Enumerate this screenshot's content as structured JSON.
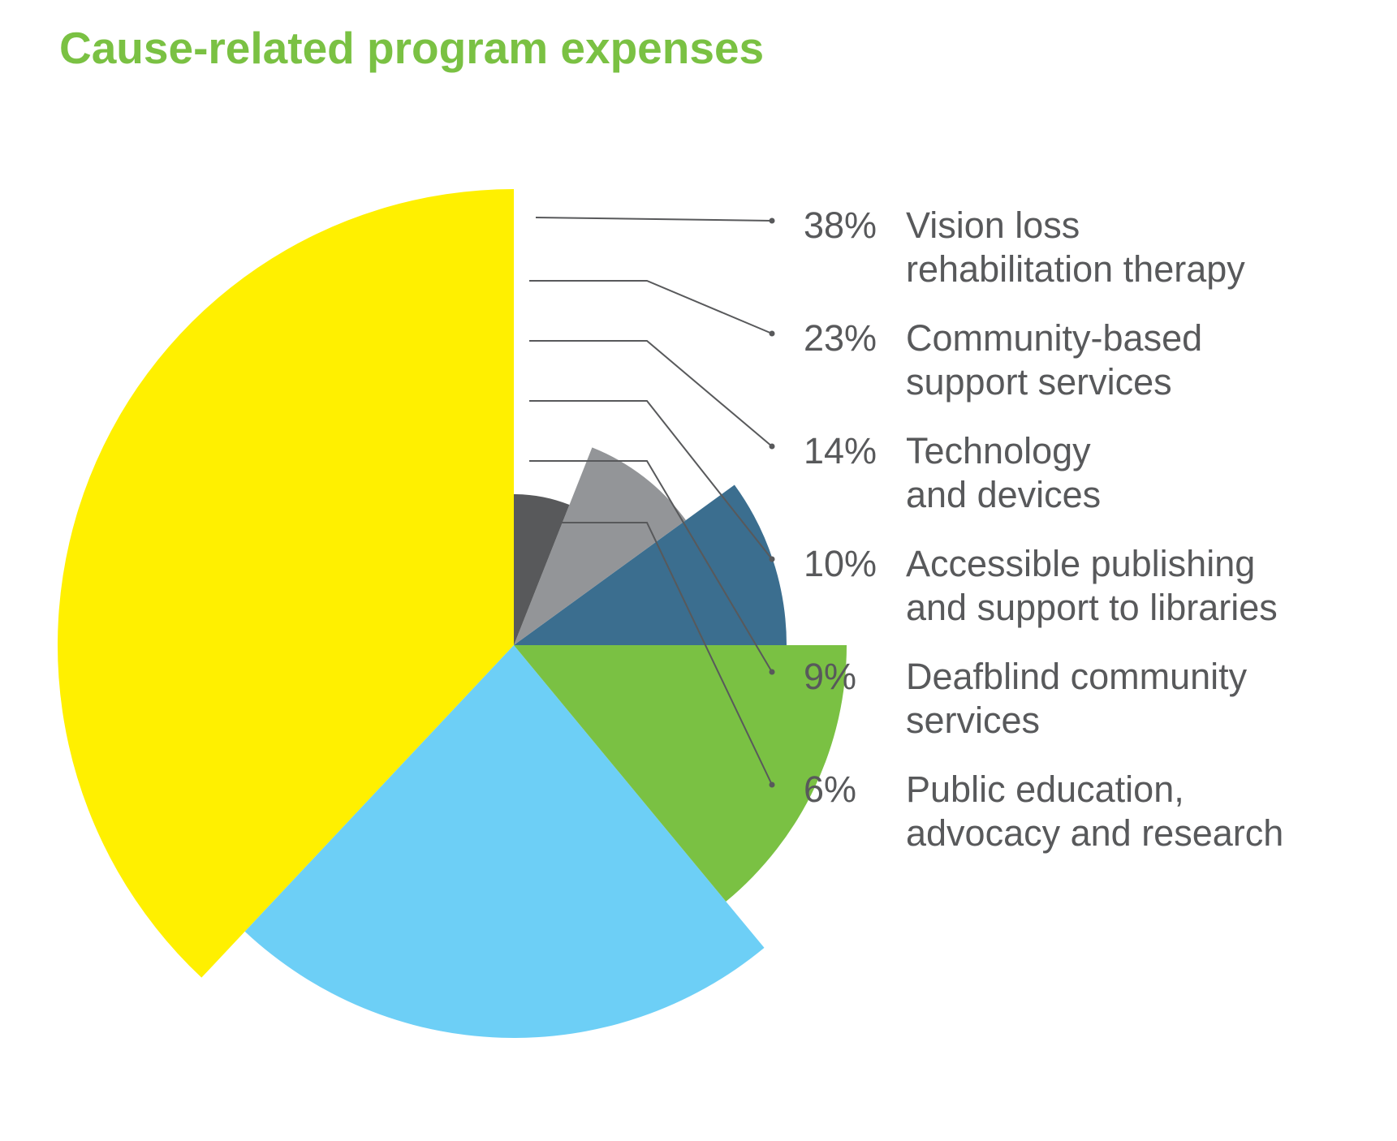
{
  "chart_data": {
    "type": "pie",
    "title": "Cause-related program expenses",
    "start": "top",
    "direction": "counterclockwise",
    "categories": [
      [
        "Vision loss",
        "rehabilitation therapy"
      ],
      [
        "Community-based",
        "support services"
      ],
      [
        "Technology",
        "and devices"
      ],
      [
        "Accessible publishing",
        "and support to libraries"
      ],
      [
        "Deafblind community",
        "services"
      ],
      [
        "Public education,",
        "advocacy and research"
      ]
    ],
    "values": [
      38,
      23,
      14,
      10,
      9,
      6
    ],
    "value_labels": [
      "38%",
      "23%",
      "14%",
      "10%",
      "9%",
      "6%"
    ],
    "colors": [
      "#FFF000",
      "#6DCFF6",
      "#7AC143",
      "#3B6E8F",
      "#939598",
      "#58595B"
    ],
    "title_color": "#7AC143",
    "text_color": "#58595B",
    "leader_color": "#58595B"
  }
}
